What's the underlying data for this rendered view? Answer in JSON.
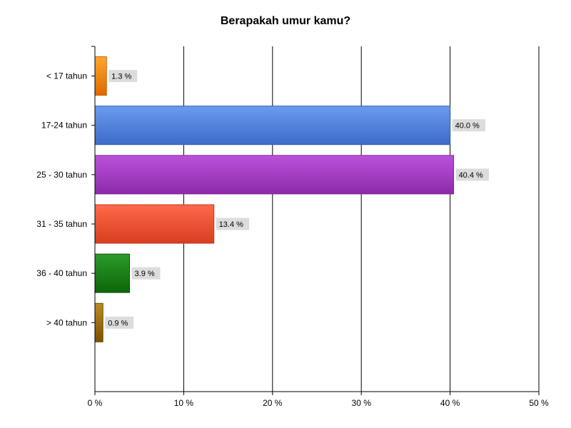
{
  "chart_data": {
    "type": "bar",
    "orientation": "horizontal",
    "title": "Berapakah umur kamu?",
    "xlabel": "",
    "ylabel": "",
    "categories": [
      "< 17 tahun",
      "17-24 tahun",
      "25 - 30 tahun",
      "31 - 35 tahun",
      "36 - 40 tahun",
      "> 40 tahun"
    ],
    "values": [
      1.3,
      40.0,
      40.4,
      13.4,
      3.9,
      0.9
    ],
    "data_labels": [
      "1.3 %",
      "40.0 %",
      "40.4 %",
      "13.4 %",
      "3.9 %",
      "0.9 %"
    ],
    "xlim": [
      0,
      50
    ],
    "x_ticks": [
      0,
      10,
      20,
      30,
      40,
      50
    ],
    "x_tick_labels": [
      "0 %",
      "10 %",
      "20 %",
      "30 %",
      "40 %",
      "50 %"
    ],
    "grid": true,
    "legend": "none",
    "colors": [
      {
        "top": "#ffa62e",
        "bottom": "#e06800",
        "stroke": "#c75e00"
      },
      {
        "top": "#6a9bef",
        "bottom": "#3c6cc8",
        "stroke": "#345fb0"
      },
      {
        "top": "#bb52da",
        "bottom": "#8c2aaa",
        "stroke": "#7d2698"
      },
      {
        "top": "#ff6a4a",
        "bottom": "#d63e1f",
        "stroke": "#c0381c"
      },
      {
        "top": "#2c9a2c",
        "bottom": "#0c6608",
        "stroke": "#0a5a07"
      },
      {
        "top": "#c08a22",
        "bottom": "#7a5200",
        "stroke": "#6a4700"
      }
    ],
    "label_bg": "#dcdcdc"
  }
}
